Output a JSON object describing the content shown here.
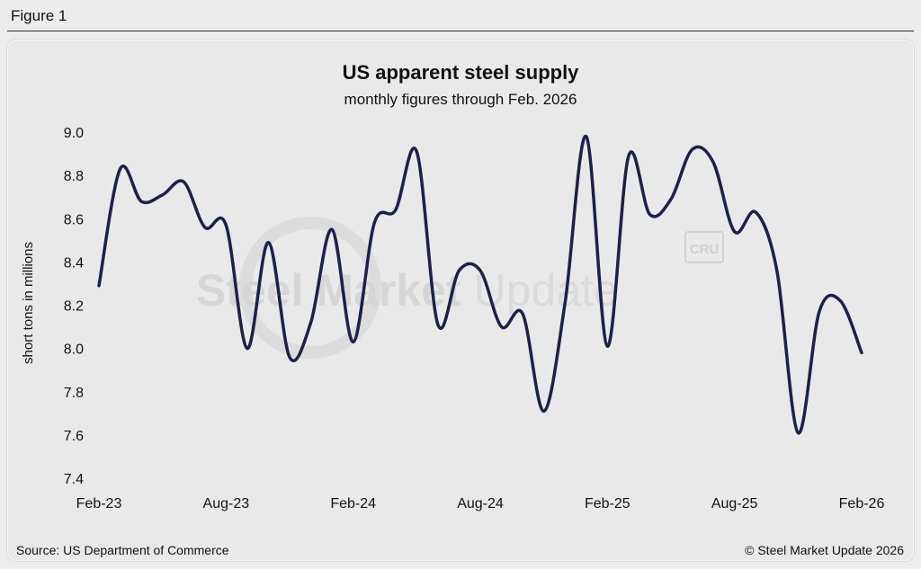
{
  "figure_label": "Figure 1",
  "watermark": {
    "brand_bold": "Steel Market",
    "brand_light": " Update",
    "cru": "CRU"
  },
  "footer": {
    "source": "Source: US Department of Commerce",
    "copyright": "© Steel Market Update 2026"
  },
  "colors": {
    "line": "#1c2148",
    "background": "#e9e9e9"
  },
  "chart_data": {
    "type": "line",
    "title": "US apparent steel supply",
    "subtitle": "monthly figures through Feb. 2026",
    "ylabel": "short tons in millions",
    "xlabel": "",
    "ylim": [
      7.4,
      9.0
    ],
    "yticks": [
      7.4,
      7.6,
      7.8,
      8.0,
      8.2,
      8.4,
      8.6,
      8.8,
      9.0
    ],
    "ytick_labels": [
      "7.4",
      "7.6",
      "7.8",
      "8.0",
      "8.2",
      "8.4",
      "8.6",
      "8.8",
      "9.0"
    ],
    "xtick_labels": [
      "Feb-23",
      "Aug-23",
      "Feb-24",
      "Aug-24",
      "Feb-25",
      "Aug-25",
      "Feb-26"
    ],
    "xtick_index": [
      0,
      6,
      12,
      18,
      24,
      30,
      36
    ],
    "grid": false,
    "legend": "none",
    "x": [
      "Feb-23",
      "Mar-23",
      "Apr-23",
      "May-23",
      "Jun-23",
      "Jul-23",
      "Aug-23",
      "Sep-23",
      "Oct-23",
      "Nov-23",
      "Dec-23",
      "Jan-24",
      "Feb-24",
      "Mar-24",
      "Apr-24",
      "May-24",
      "Jun-24",
      "Jul-24",
      "Aug-24",
      "Sep-24",
      "Oct-24",
      "Nov-24",
      "Dec-24",
      "Jan-25",
      "Feb-25",
      "Mar-25",
      "Apr-25",
      "May-25",
      "Jun-25",
      "Jul-25",
      "Aug-25",
      "Sep-25",
      "Oct-25",
      "Nov-25",
      "Dec-25",
      "Jan-26",
      "Feb-26"
    ],
    "series": [
      {
        "values": [
          8.29,
          8.83,
          8.68,
          8.71,
          8.77,
          8.56,
          8.57,
          8.0,
          8.49,
          7.96,
          8.12,
          8.55,
          8.03,
          8.58,
          8.64,
          8.91,
          8.11,
          8.36,
          8.36,
          8.1,
          8.16,
          7.71,
          8.21,
          8.98,
          8.01,
          8.89,
          8.62,
          8.69,
          8.92,
          8.86,
          8.54,
          8.63,
          8.36,
          7.61,
          8.17,
          8.22,
          7.98
        ]
      }
    ]
  }
}
